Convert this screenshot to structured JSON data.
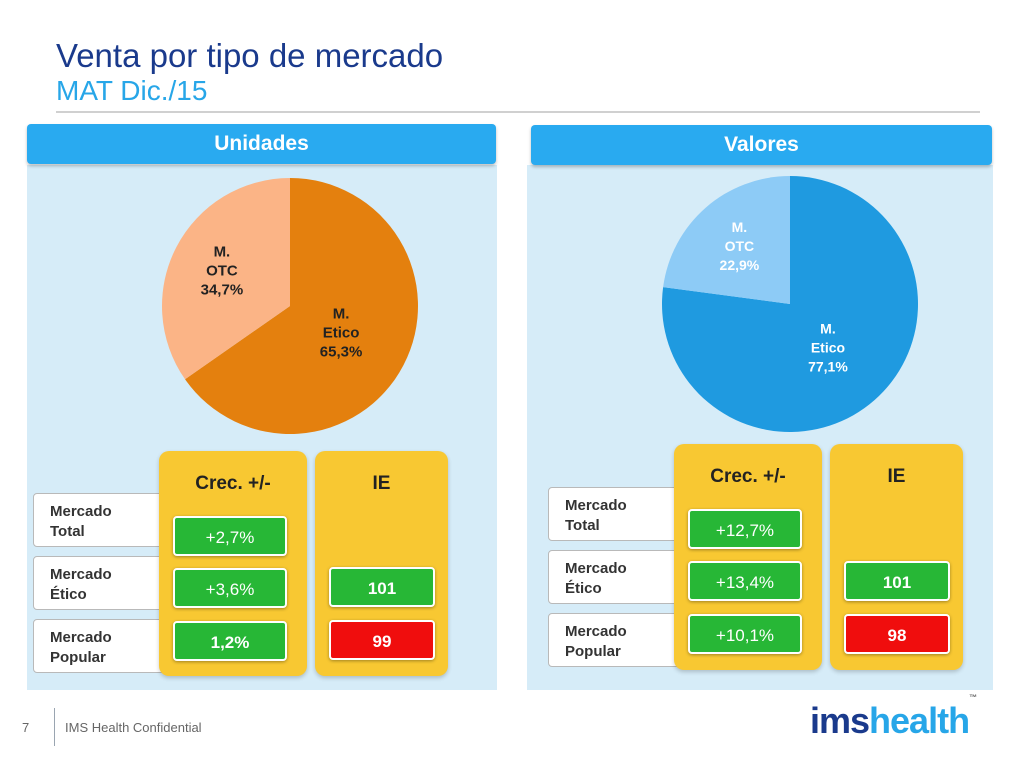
{
  "header": {
    "title": "Venta por tipo de mercado",
    "subtitle": "MAT Dic./15"
  },
  "row_labels": [
    {
      "line1": "Mercado",
      "line2": "Total"
    },
    {
      "line1": "Mercado",
      "line2": "Ético"
    },
    {
      "line1": "Mercado",
      "line2": "Popular"
    }
  ],
  "panels": [
    {
      "heading": "Unidades",
      "crec_title": "Crec. +/-",
      "ie_title": "IE",
      "crec_values": [
        "+2,7%",
        "+3,6%",
        "1,2%"
      ],
      "ie_values": [
        "101",
        "99"
      ]
    },
    {
      "heading": "Valores",
      "crec_title": "Crec. +/-",
      "ie_title": "IE",
      "crec_values": [
        "+12,7%",
        "+13,4%",
        "+10,1%"
      ],
      "ie_values": [
        "101",
        "98"
      ]
    }
  ],
  "footer": {
    "page_number": "7",
    "confidential": "IMS Health Confidential",
    "logo_part1": "ims",
    "logo_part2": "health",
    "logo_tm": "™"
  },
  "colors": {
    "unidades_etico": "#e4800e",
    "unidades_otc": "#fbb486",
    "valores_etico": "#1f9ae0",
    "valores_otc": "#8dcbf6",
    "panel_header": "#29aaf0",
    "ie_above": "#27b736",
    "ie_below": "#f00d0d"
  },
  "chart_data": [
    {
      "type": "pie",
      "title": "Unidades",
      "slices": [
        {
          "label_lines": [
            "M.",
            "Etico",
            "65,3%"
          ],
          "value": 65.3,
          "color": "#e4800e"
        },
        {
          "label_lines": [
            "M.",
            "OTC",
            "34,7%"
          ],
          "value": 34.7,
          "color": "#fbb486"
        }
      ]
    },
    {
      "type": "pie",
      "title": "Valores",
      "slices": [
        {
          "label_lines": [
            "M.",
            "Etico",
            "77,1%"
          ],
          "value": 77.1,
          "color": "#1f9ae0"
        },
        {
          "label_lines": [
            "M.",
            "OTC",
            "22,9%"
          ],
          "value": 22.9,
          "color": "#8dcbf6"
        }
      ]
    }
  ]
}
